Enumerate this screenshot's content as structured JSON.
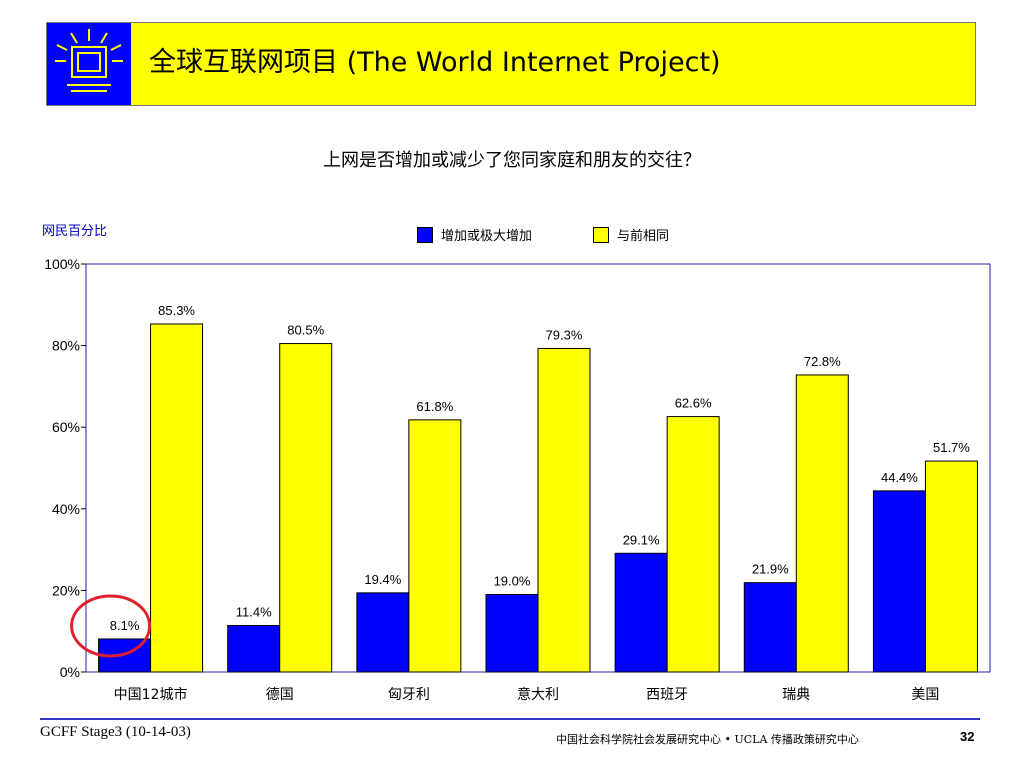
{
  "header": {
    "title": "全球互联网项目 (The World Internet Project)",
    "background_color": "#ffff00",
    "logo_color": "#0000ff"
  },
  "chart_data": {
    "type": "bar",
    "title": "上网是否增加或减少了您同家庭和朋友的交往？",
    "ylabel": "网民百分比",
    "xlabel": "",
    "categories": [
      "中国12城市",
      "德国",
      "匈牙利",
      "意大利",
      "西班牙",
      "瑞典",
      "美国"
    ],
    "series": [
      {
        "name": "增加或极大增加",
        "color": "#0000ff",
        "values": [
          8.1,
          11.4,
          19.4,
          19.0,
          29.1,
          21.9,
          44.4
        ],
        "labels": [
          "8.1%",
          "11.4%",
          "19.4%",
          "19.0%",
          "29.1%",
          "21.9%",
          "44.4%"
        ]
      },
      {
        "name": "与前相同",
        "color": "#ffff00",
        "values": [
          85.3,
          80.5,
          61.8,
          79.3,
          62.6,
          72.8,
          51.7
        ],
        "labels": [
          "85.3%",
          "80.5%",
          "61.8%",
          "79.3%",
          "62.6%",
          "72.8%",
          "51.7%"
        ]
      }
    ],
    "ylim": [
      0,
      100
    ],
    "yticks": [
      0,
      20,
      40,
      60,
      80,
      100
    ],
    "ytick_labels": [
      "0%",
      "20%",
      "40%",
      "60%",
      "80%",
      "100%"
    ],
    "grid": false,
    "legend_position": "top-center",
    "annotation": {
      "type": "circle",
      "color": "#e0202c",
      "target": "中国12城市 增加或极大增加 8.1%"
    }
  },
  "footer": {
    "left": "GCFF Stage3 (10-14-03)",
    "center": "中国社会科学院社会发展研究中心 • UCLA 传播政策研究中心",
    "page_number": "32"
  }
}
